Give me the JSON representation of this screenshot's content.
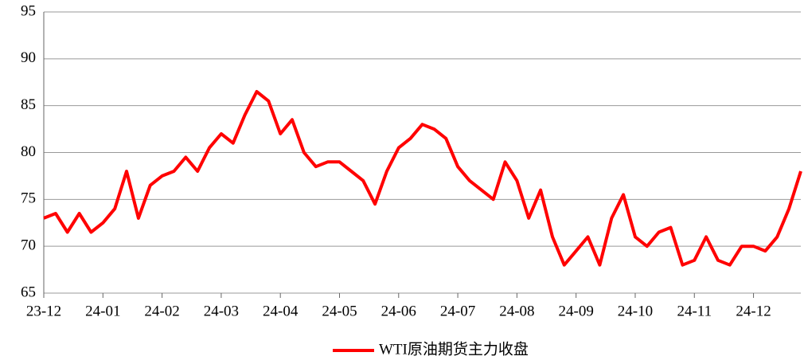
{
  "chart_data": {
    "type": "line",
    "categories": [
      "23-12",
      null,
      null,
      null,
      null,
      "24-01",
      null,
      null,
      null,
      null,
      "24-02",
      null,
      null,
      null,
      null,
      "24-03",
      null,
      null,
      null,
      null,
      "24-04",
      null,
      null,
      null,
      null,
      "24-05",
      null,
      null,
      null,
      null,
      "24-06",
      null,
      null,
      null,
      null,
      "24-07",
      null,
      null,
      null,
      null,
      "24-08",
      null,
      null,
      null,
      null,
      "24-09",
      null,
      null,
      null,
      null,
      "24-10",
      null,
      null,
      null,
      null,
      "24-11",
      null,
      null,
      null,
      null,
      "24-12",
      null,
      null,
      null,
      null
    ],
    "series": [
      {
        "name": "WTI原油期货主力收盘",
        "color": "#ff0000",
        "values": [
          73,
          73.5,
          71.5,
          73.5,
          71.5,
          72.5,
          74,
          78,
          73,
          76.5,
          77.5,
          78,
          79.5,
          78,
          80.5,
          82,
          81,
          84,
          86.5,
          85.5,
          82,
          83.5,
          80,
          78.5,
          79,
          79,
          78,
          77,
          74.5,
          78,
          80.5,
          81.5,
          83,
          82.5,
          81.5,
          78.5,
          77,
          76,
          75,
          79,
          77,
          73,
          76,
          71,
          68,
          69.5,
          71,
          68,
          73,
          75.5,
          71,
          70,
          71.5,
          72,
          68,
          68.5,
          71,
          68.5,
          68,
          70,
          70,
          69.5,
          71,
          74,
          78
        ]
      }
    ],
    "ylim": [
      65,
      95
    ],
    "yticks": [
      65,
      70,
      75,
      80,
      85,
      90,
      95
    ],
    "grid": true,
    "legend": "bottom"
  }
}
